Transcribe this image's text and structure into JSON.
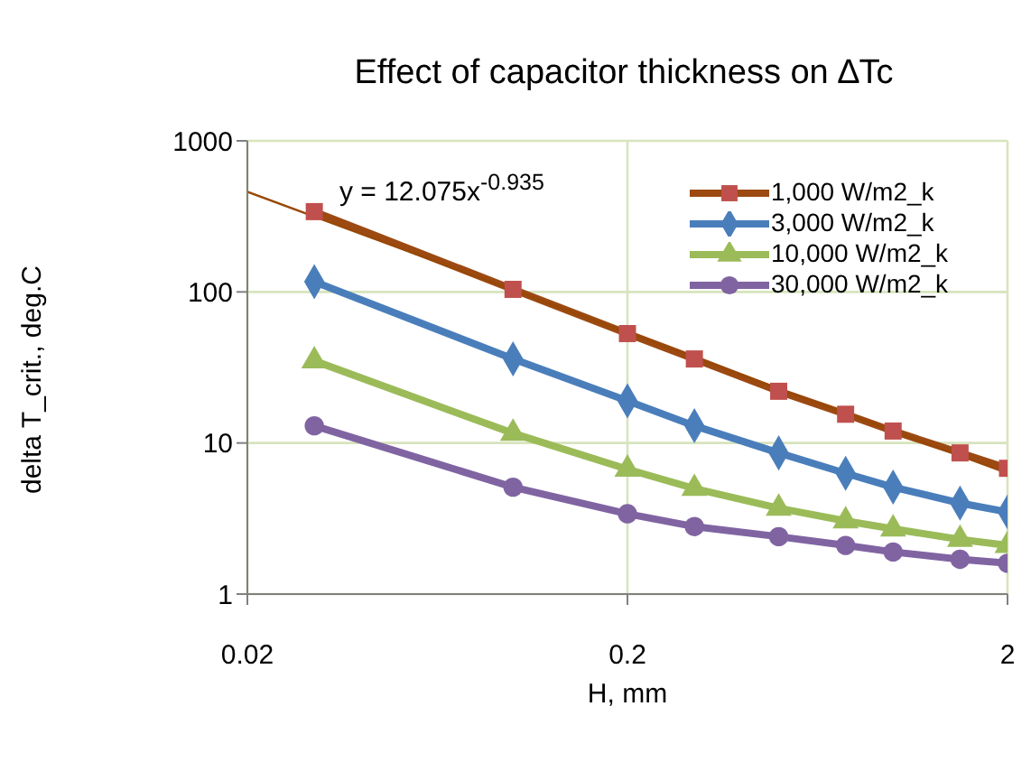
{
  "chart_data": {
    "type": "line",
    "title": "Effect of capacitor thickness on ∆Tc",
    "xlabel": "H, mm",
    "ylabel": "delta T_crit., deg.C",
    "log": "xy",
    "grid": true,
    "legend": "top right",
    "xlim": [
      0.02,
      2
    ],
    "xticks": [
      0.02,
      0.2,
      2
    ],
    "ylim": [
      1,
      1000
    ],
    "yticks": [
      1,
      10,
      100,
      1000
    ],
    "annotations": [
      "y = 12.075x$^{-0.935}$"
    ],
    "x": [
      0.03,
      0.1,
      0.2,
      0.3,
      0.5,
      0.75,
      1,
      1.5,
      2
    ],
    "series": [
      {
        "name": "1,000 W/m2_k",
        "color": "#9c4a12",
        "marker": "square",
        "values": [
          340,
          104,
          53,
          36,
          22,
          15.5,
          12,
          8.6,
          6.8
        ]
      },
      {
        "name": "3,000 W/m2_k",
        "color": "#4a7ebb",
        "marker": "diamond",
        "values": [
          117,
          36,
          19,
          13,
          8.6,
          6.3,
          5.1,
          4.0,
          3.5
        ]
      },
      {
        "name": "10,000 W/m2_k",
        "color": "#9bbb59",
        "marker": "triangle",
        "values": [
          35,
          11.6,
          6.7,
          5.0,
          3.7,
          3.05,
          2.7,
          2.3,
          2.1
        ]
      },
      {
        "name": "30,000 W/m2_k",
        "color": "#8064a2",
        "marker": "circle",
        "values": [
          13,
          5.1,
          3.4,
          2.8,
          2.4,
          2.1,
          1.9,
          1.7,
          1.6
        ]
      },
      {
        "type": "line",
        "color": "#984807",
        "marker": "none",
        "x": [
          0.02,
          2
        ],
        "values": [
          460,
          6.3
        ]
      }
    ]
  }
}
